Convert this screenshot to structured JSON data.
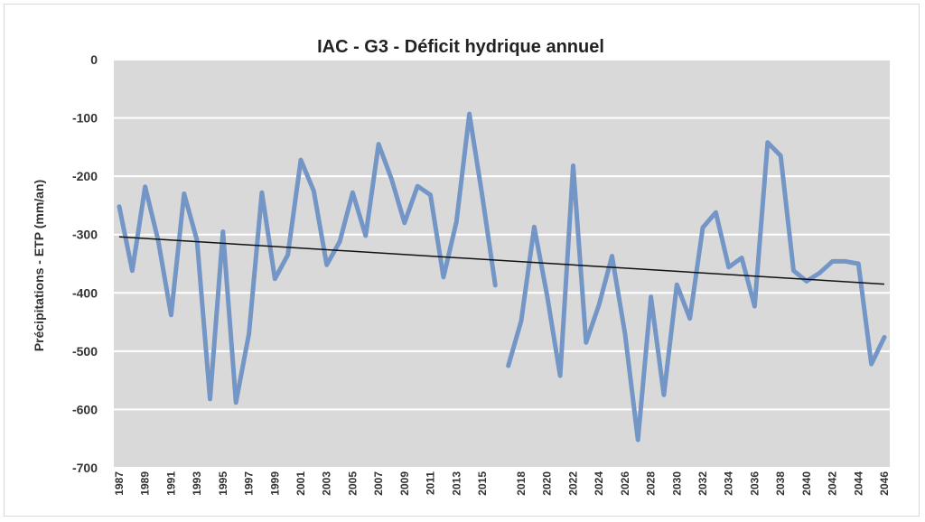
{
  "chart_data": {
    "type": "line",
    "title": "IAC - G3 - Déficit hydrique annuel",
    "xlabel": "",
    "ylabel": "Précipitations - ETP (mm/an)",
    "ylim": [
      -700,
      0
    ],
    "yticks": [
      0,
      -100,
      -200,
      -300,
      -400,
      -500,
      -600,
      -700
    ],
    "x": [
      1987,
      1988,
      1989,
      1990,
      1991,
      1992,
      1993,
      1994,
      1995,
      1996,
      1997,
      1998,
      1999,
      2000,
      2001,
      2002,
      2003,
      2004,
      2005,
      2006,
      2007,
      2008,
      2009,
      2010,
      2011,
      2012,
      2013,
      2014,
      2015,
      2016,
      2017,
      2018,
      2019,
      2020,
      2021,
      2022,
      2023,
      2024,
      2025,
      2026,
      2027,
      2028,
      2029,
      2030,
      2031,
      2032,
      2033,
      2034,
      2035,
      2036,
      2037,
      2038,
      2039,
      2040,
      2041,
      2042,
      2043,
      2044,
      2045,
      2046
    ],
    "xtick_labels": [
      "1987",
      "1989",
      "1991",
      "1993",
      "1995",
      "1997",
      "1999",
      "2001",
      "2003",
      "2005",
      "2007",
      "2009",
      "2011",
      "2013",
      "2015",
      "2018",
      "2020",
      "2022",
      "2024",
      "2026",
      "2028",
      "2030",
      "2032",
      "2034",
      "2036",
      "2038",
      "2040",
      "2042",
      "2044",
      "2046"
    ],
    "series": [
      {
        "color": "#7396c6",
        "values": [
          -252,
          -362,
          -218,
          -310,
          -438,
          -230,
          -310,
          -582,
          -295,
          -588,
          -470,
          -228,
          -376,
          -335,
          -172,
          -225,
          -352,
          -312,
          -228,
          -302,
          -145,
          -205,
          -280,
          -217,
          -232,
          -373,
          -278,
          -93,
          -235,
          -387,
          -525,
          -448,
          -287,
          -405,
          -542,
          -182,
          -485,
          -420,
          -337,
          -470,
          -652,
          -407,
          -575,
          -386,
          -444,
          -288,
          -262,
          -356,
          -340,
          -423,
          -142,
          -165,
          -362,
          -380,
          -366,
          -346,
          -346,
          -350,
          -522,
          -476
        ]
      }
    ],
    "gap_after": [
      2016
    ],
    "trendline": {
      "color": "#111111",
      "from": [
        1987,
        -304
      ],
      "to": [
        2046,
        -385
      ]
    },
    "grid": true,
    "plot_background": "#d9d9d9",
    "gridline_color": "#ffffff"
  }
}
